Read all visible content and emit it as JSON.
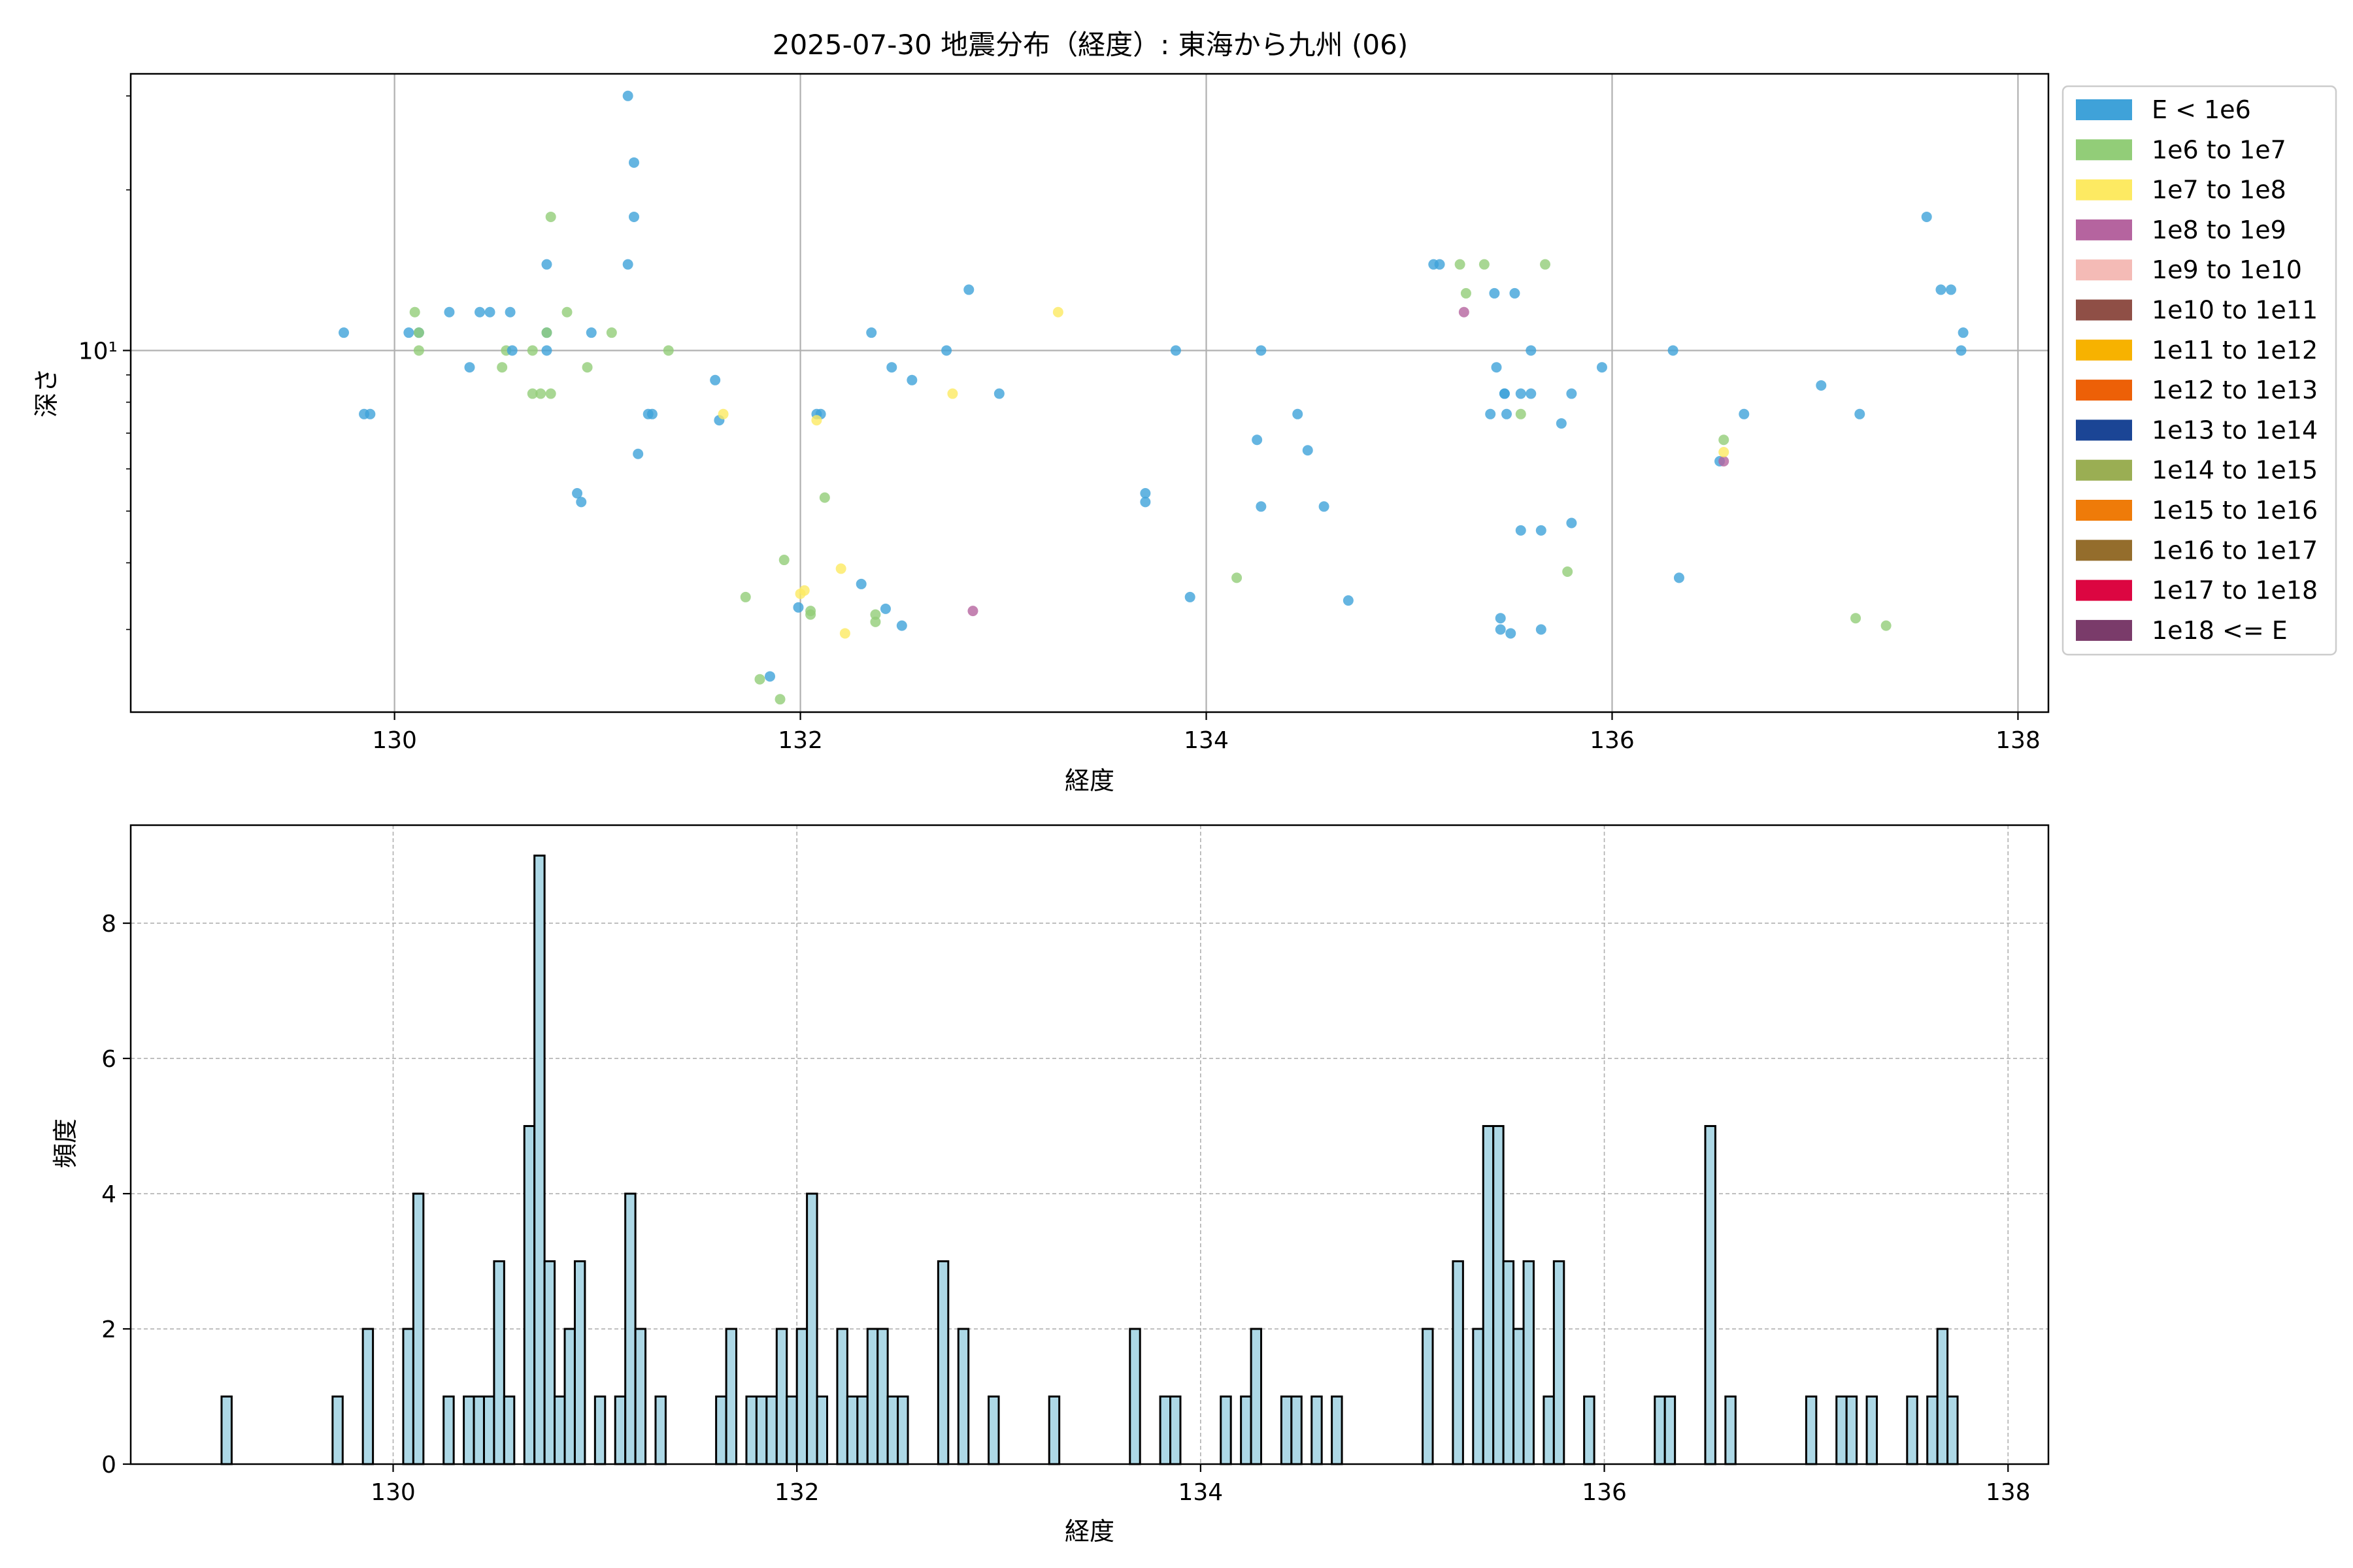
{
  "title": "2025-07-30 地震分布（経度）: 東海から九州 (06)",
  "chart_data": [
    {
      "type": "scatter",
      "xlabel": "経度",
      "ylabel": "深さ",
      "xlim": [
        128.7,
        138.15
      ],
      "ylim": [
        2.1,
        33
      ],
      "yscale": "log",
      "grid": true,
      "legend_position": "outside-right",
      "xticks": [
        130,
        132,
        134,
        136,
        138
      ],
      "xtick_labels": [
        "130",
        "132",
        "134",
        "136",
        "138"
      ],
      "yticks": [
        10
      ],
      "ytick_labels": [
        "10¹"
      ],
      "legend": [
        {
          "label": "E < 1e6",
          "color": "#3fa2d9"
        },
        {
          "label": "1e6 to 1e7",
          "color": "#92cd78"
        },
        {
          "label": "1e7 to 1e8",
          "color": "#fdea62"
        },
        {
          "label": "1e8 to 1e9",
          "color": "#b5649f"
        },
        {
          "label": "1e9 to 1e10",
          "color": "#f4bbb6"
        },
        {
          "label": "1e10 to 1e11",
          "color": "#8f4f46"
        },
        {
          "label": "1e11 to 1e12",
          "color": "#f7b200"
        },
        {
          "label": "1e12 to 1e13",
          "color": "#ed6007"
        },
        {
          "label": "1e13 to 1e14",
          "color": "#1b4595"
        },
        {
          "label": "1e14 to 1e15",
          "color": "#9aae53"
        },
        {
          "label": "1e15 to 1e16",
          "color": "#ef7b09"
        },
        {
          "label": "1e16 to 1e17",
          "color": "#946d2c"
        },
        {
          "label": "1e17 to 1e18",
          "color": "#dc0641"
        },
        {
          "label": "1e18 <= E",
          "color": "#7a3b6a"
        }
      ],
      "points": [
        [
          129.75,
          10.8,
          0
        ],
        [
          129.85,
          7.6,
          0
        ],
        [
          129.88,
          7.6,
          0
        ],
        [
          130.07,
          10.8,
          0
        ],
        [
          130.12,
          10.8,
          0
        ],
        [
          130.1,
          11.8,
          1
        ],
        [
          130.12,
          10.8,
          1
        ],
        [
          130.12,
          10.0,
          1
        ],
        [
          130.27,
          11.8,
          0
        ],
        [
          130.37,
          9.3,
          0
        ],
        [
          130.42,
          11.8,
          0
        ],
        [
          130.47,
          11.8,
          0
        ],
        [
          130.53,
          9.3,
          1
        ],
        [
          130.55,
          10.0,
          1
        ],
        [
          130.58,
          10.0,
          0
        ],
        [
          130.57,
          11.8,
          0
        ],
        [
          130.68,
          8.3,
          1
        ],
        [
          130.68,
          10.0,
          1
        ],
        [
          130.72,
          8.3,
          1
        ],
        [
          130.75,
          10.8,
          0
        ],
        [
          130.75,
          10.0,
          0
        ],
        [
          130.75,
          14.5,
          0
        ],
        [
          130.75,
          10.8,
          1
        ],
        [
          130.77,
          8.3,
          1
        ],
        [
          130.77,
          17.8,
          1
        ],
        [
          130.85,
          11.8,
          1
        ],
        [
          130.9,
          5.4,
          0
        ],
        [
          130.92,
          5.2,
          0
        ],
        [
          130.95,
          9.3,
          1
        ],
        [
          130.97,
          10.8,
          0
        ],
        [
          131.07,
          10.8,
          1
        ],
        [
          131.15,
          30.0,
          0
        ],
        [
          131.15,
          14.5,
          0
        ],
        [
          131.18,
          22.5,
          0
        ],
        [
          131.18,
          17.8,
          0
        ],
        [
          131.2,
          6.4,
          0
        ],
        [
          131.25,
          7.6,
          0
        ],
        [
          131.27,
          7.6,
          0
        ],
        [
          131.35,
          10.0,
          1
        ],
        [
          131.58,
          8.8,
          0
        ],
        [
          131.6,
          7.4,
          0
        ],
        [
          131.62,
          7.6,
          2
        ],
        [
          131.73,
          3.45,
          1
        ],
        [
          131.8,
          2.42,
          1
        ],
        [
          131.85,
          2.45,
          0
        ],
        [
          131.9,
          2.22,
          1
        ],
        [
          131.92,
          4.05,
          1
        ],
        [
          131.99,
          3.3,
          0
        ],
        [
          132.02,
          3.55,
          2
        ],
        [
          132.0,
          3.5,
          2
        ],
        [
          132.05,
          3.2,
          1
        ],
        [
          132.05,
          3.25,
          1
        ],
        [
          132.08,
          7.6,
          0
        ],
        [
          132.1,
          7.6,
          0
        ],
        [
          132.08,
          7.4,
          2
        ],
        [
          132.12,
          5.3,
          1
        ],
        [
          132.2,
          3.9,
          2
        ],
        [
          132.22,
          2.95,
          2
        ],
        [
          132.3,
          3.65,
          0
        ],
        [
          132.35,
          10.8,
          0
        ],
        [
          132.37,
          3.2,
          1
        ],
        [
          132.37,
          3.1,
          1
        ],
        [
          132.42,
          3.28,
          0
        ],
        [
          132.45,
          9.3,
          0
        ],
        [
          132.5,
          3.05,
          0
        ],
        [
          132.55,
          8.8,
          0
        ],
        [
          132.72,
          10.0,
          0
        ],
        [
          132.75,
          8.3,
          2
        ],
        [
          132.83,
          13.0,
          0
        ],
        [
          132.85,
          3.25,
          3
        ],
        [
          132.98,
          8.3,
          0
        ],
        [
          133.27,
          11.8,
          2
        ],
        [
          133.7,
          5.4,
          0
        ],
        [
          133.7,
          5.2,
          0
        ],
        [
          133.85,
          10.0,
          0
        ],
        [
          133.92,
          3.45,
          0
        ],
        [
          134.15,
          3.75,
          1
        ],
        [
          134.25,
          6.8,
          0
        ],
        [
          134.27,
          10.0,
          0
        ],
        [
          134.27,
          5.1,
          0
        ],
        [
          134.45,
          7.6,
          0
        ],
        [
          134.5,
          6.5,
          0
        ],
        [
          134.58,
          5.1,
          0
        ],
        [
          134.7,
          3.4,
          0
        ],
        [
          135.12,
          14.5,
          0
        ],
        [
          135.15,
          14.5,
          0
        ],
        [
          135.25,
          14.5,
          1
        ],
        [
          135.27,
          11.8,
          3
        ],
        [
          135.28,
          12.8,
          1
        ],
        [
          135.37,
          14.5,
          1
        ],
        [
          135.4,
          7.6,
          0
        ],
        [
          135.42,
          12.8,
          0
        ],
        [
          135.43,
          9.3,
          0
        ],
        [
          135.45,
          3.15,
          0
        ],
        [
          135.45,
          3.0,
          0
        ],
        [
          135.47,
          8.3,
          0
        ],
        [
          135.47,
          8.3,
          0
        ],
        [
          135.48,
          7.6,
          0
        ],
        [
          135.5,
          2.95,
          0
        ],
        [
          135.52,
          12.8,
          0
        ],
        [
          135.55,
          8.3,
          0
        ],
        [
          135.55,
          4.6,
          0
        ],
        [
          135.55,
          7.6,
          1
        ],
        [
          135.6,
          10.0,
          0
        ],
        [
          135.6,
          8.3,
          0
        ],
        [
          135.65,
          3.0,
          0
        ],
        [
          135.65,
          4.6,
          0
        ],
        [
          135.67,
          14.5,
          1
        ],
        [
          135.75,
          7.3,
          0
        ],
        [
          135.8,
          8.3,
          0
        ],
        [
          135.8,
          4.75,
          0
        ],
        [
          135.78,
          3.85,
          1
        ],
        [
          135.95,
          9.3,
          0
        ],
        [
          136.3,
          10.0,
          0
        ],
        [
          136.33,
          3.75,
          0
        ],
        [
          136.53,
          6.2,
          0
        ],
        [
          136.55,
          6.2,
          3
        ],
        [
          136.55,
          6.45,
          2
        ],
        [
          136.55,
          6.8,
          1
        ],
        [
          136.65,
          7.6,
          0
        ],
        [
          137.03,
          8.6,
          0
        ],
        [
          137.2,
          3.15,
          1
        ],
        [
          137.22,
          7.6,
          0
        ],
        [
          137.35,
          3.05,
          1
        ],
        [
          137.55,
          17.8,
          0
        ],
        [
          137.62,
          13.0,
          0
        ],
        [
          137.67,
          13.0,
          0
        ],
        [
          137.72,
          10.0,
          0
        ],
        [
          137.73,
          10.8,
          0
        ]
      ]
    },
    {
      "type": "bar",
      "subtype": "histogram",
      "xlabel": "経度",
      "ylabel": "頻度",
      "xlim": [
        128.7,
        138.2
      ],
      "ylim": [
        0,
        9.45
      ],
      "grid": true,
      "bin_width": 0.05,
      "color": "#add8e6",
      "edgecolor": "#000000",
      "xticks": [
        130,
        132,
        134,
        136,
        138
      ],
      "xtick_labels": [
        "130",
        "132",
        "134",
        "136",
        "138"
      ],
      "yticks": [
        0,
        2,
        4,
        6,
        8
      ],
      "ytick_labels": [
        "0",
        "2",
        "4",
        "6",
        "8"
      ],
      "bins": [
        [
          129.15,
          1
        ],
        [
          129.7,
          1
        ],
        [
          129.85,
          2
        ],
        [
          130.05,
          2
        ],
        [
          130.1,
          4
        ],
        [
          130.25,
          1
        ],
        [
          130.35,
          1
        ],
        [
          130.4,
          1
        ],
        [
          130.45,
          1
        ],
        [
          130.5,
          3
        ],
        [
          130.55,
          1
        ],
        [
          130.65,
          5
        ],
        [
          130.7,
          9
        ],
        [
          130.75,
          3
        ],
        [
          130.8,
          1
        ],
        [
          130.85,
          2
        ],
        [
          130.9,
          3
        ],
        [
          131.0,
          1
        ],
        [
          131.1,
          1
        ],
        [
          131.15,
          4
        ],
        [
          131.2,
          2
        ],
        [
          131.3,
          1
        ],
        [
          131.6,
          1
        ],
        [
          131.65,
          2
        ],
        [
          131.75,
          1
        ],
        [
          131.8,
          1
        ],
        [
          131.85,
          1
        ],
        [
          131.9,
          2
        ],
        [
          131.95,
          1
        ],
        [
          132.0,
          2
        ],
        [
          132.05,
          4
        ],
        [
          132.1,
          1
        ],
        [
          132.2,
          2
        ],
        [
          132.25,
          1
        ],
        [
          132.3,
          1
        ],
        [
          132.35,
          2
        ],
        [
          132.4,
          2
        ],
        [
          132.45,
          1
        ],
        [
          132.5,
          1
        ],
        [
          132.7,
          3
        ],
        [
          132.8,
          2
        ],
        [
          132.95,
          1
        ],
        [
          133.25,
          1
        ],
        [
          133.65,
          2
        ],
        [
          133.8,
          1
        ],
        [
          133.85,
          1
        ],
        [
          134.1,
          1
        ],
        [
          134.2,
          1
        ],
        [
          134.25,
          2
        ],
        [
          134.4,
          1
        ],
        [
          134.45,
          1
        ],
        [
          134.55,
          1
        ],
        [
          134.65,
          1
        ],
        [
          135.1,
          2
        ],
        [
          135.25,
          3
        ],
        [
          135.35,
          2
        ],
        [
          135.4,
          5
        ],
        [
          135.45,
          5
        ],
        [
          135.5,
          3
        ],
        [
          135.55,
          2
        ],
        [
          135.6,
          3
        ],
        [
          135.7,
          1
        ],
        [
          135.75,
          3
        ],
        [
          135.9,
          1
        ],
        [
          136.25,
          1
        ],
        [
          136.3,
          1
        ],
        [
          136.5,
          5
        ],
        [
          136.6,
          1
        ],
        [
          137.0,
          1
        ],
        [
          137.15,
          1
        ],
        [
          137.2,
          1
        ],
        [
          137.3,
          1
        ],
        [
          137.5,
          1
        ],
        [
          137.6,
          1
        ],
        [
          137.65,
          2
        ],
        [
          137.7,
          1
        ]
      ]
    }
  ]
}
